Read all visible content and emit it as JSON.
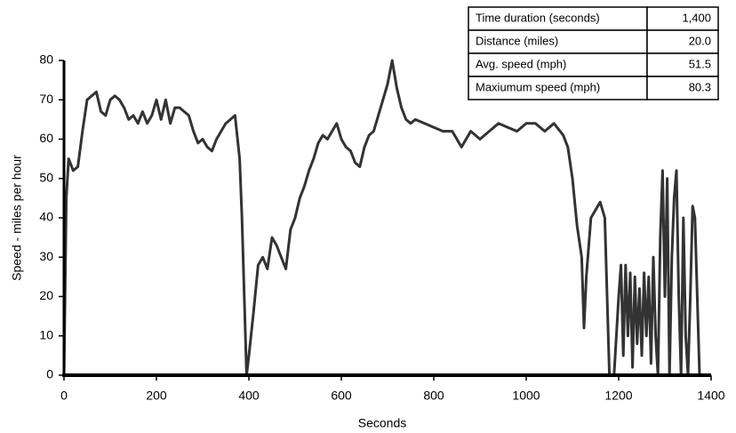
{
  "chart_data": {
    "type": "line",
    "x_label": "Seconds",
    "y_label": "Speed - miles per hour",
    "x": [
      0,
      5,
      10,
      20,
      30,
      40,
      50,
      60,
      70,
      80,
      90,
      100,
      110,
      120,
      130,
      140,
      150,
      160,
      170,
      180,
      190,
      200,
      210,
      220,
      230,
      240,
      250,
      260,
      270,
      280,
      290,
      300,
      310,
      320,
      330,
      340,
      350,
      360,
      370,
      380,
      385,
      390,
      395,
      400,
      410,
      420,
      430,
      440,
      450,
      460,
      470,
      480,
      490,
      500,
      510,
      520,
      530,
      540,
      550,
      560,
      570,
      580,
      590,
      600,
      610,
      620,
      630,
      640,
      650,
      660,
      670,
      680,
      690,
      700,
      710,
      720,
      730,
      740,
      750,
      760,
      780,
      800,
      820,
      840,
      850,
      860,
      870,
      880,
      900,
      920,
      940,
      960,
      980,
      1000,
      1020,
      1040,
      1060,
      1080,
      1090,
      1100,
      1110,
      1120,
      1125,
      1130,
      1140,
      1150,
      1160,
      1170,
      1180,
      1190,
      1200,
      1205,
      1210,
      1215,
      1220,
      1225,
      1230,
      1235,
      1240,
      1245,
      1250,
      1255,
      1260,
      1265,
      1270,
      1275,
      1280,
      1285,
      1290,
      1295,
      1300,
      1305,
      1310,
      1315,
      1320,
      1325,
      1330,
      1335,
      1340,
      1345,
      1350,
      1355,
      1360,
      1365,
      1370,
      1375,
      1380
    ],
    "values": [
      0,
      45,
      55,
      52,
      53,
      62,
      70,
      71,
      72,
      67,
      66,
      70,
      71,
      70,
      68,
      65,
      66,
      64,
      67,
      64,
      66,
      70,
      65,
      70,
      64,
      68,
      68,
      67,
      66,
      62,
      59,
      60,
      58,
      57,
      60,
      62,
      64,
      65,
      66,
      55,
      40,
      20,
      0,
      5,
      16,
      28,
      30,
      27,
      35,
      33,
      30,
      27,
      37,
      40,
      45,
      48,
      52,
      55,
      59,
      61,
      60,
      62,
      64,
      60,
      58,
      57,
      54,
      53,
      58,
      61,
      62,
      66,
      70,
      74,
      80,
      73,
      68,
      65,
      64,
      65,
      64,
      63,
      62,
      62,
      60,
      58,
      60,
      62,
      60,
      62,
      64,
      63,
      62,
      64,
      64,
      62,
      64,
      61,
      58,
      50,
      38,
      30,
      12,
      25,
      40,
      42,
      44,
      40,
      0,
      0,
      20,
      28,
      5,
      28,
      10,
      26,
      2,
      25,
      8,
      22,
      5,
      26,
      10,
      25,
      3,
      30,
      10,
      0,
      35,
      52,
      20,
      50,
      0,
      30,
      45,
      52,
      20,
      0,
      40,
      10,
      0,
      20,
      43,
      40,
      20,
      0,
      0
    ],
    "color": "#333333",
    "xlim": [
      0,
      1400
    ],
    "xticks": [
      0,
      200,
      400,
      600,
      800,
      1000,
      1200,
      1400
    ],
    "ylim": [
      0,
      80
    ],
    "yticks": [
      0,
      10,
      20,
      30,
      40,
      50,
      60,
      70,
      80
    ]
  },
  "table": {
    "rows": [
      [
        "Time duration (seconds)",
        "1,400"
      ],
      [
        "Distance (miles)",
        "20.0"
      ],
      [
        "Avg. speed (mph)",
        "51.5"
      ],
      [
        "Maxiumum speed (mph)",
        "80.3"
      ]
    ]
  }
}
